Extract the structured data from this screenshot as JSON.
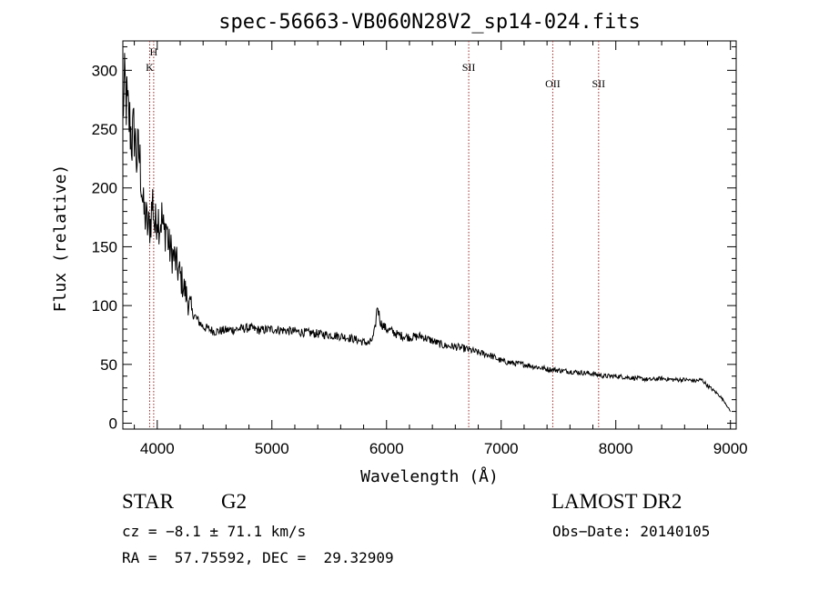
{
  "chart_data": {
    "type": "line",
    "title": "spec-56663-VB060N28V2_sp14-024.fits",
    "xlabel": "Wavelength (Å)",
    "ylabel": "Flux (relative)",
    "xlim": [
      3700,
      9050
    ],
    "ylim": [
      -5,
      325
    ],
    "x_ticks": [
      4000,
      5000,
      6000,
      7000,
      8000,
      9000
    ],
    "y_ticks": [
      0,
      50,
      100,
      150,
      200,
      250,
      300
    ],
    "grid": false,
    "series": [
      {
        "name": "flux",
        "x": [
          3700,
          3720,
          3740,
          3760,
          3780,
          3800,
          3820,
          3840,
          3860,
          3880,
          3900,
          3920,
          3940,
          3960,
          3980,
          4000,
          4020,
          4040,
          4060,
          4080,
          4100,
          4150,
          4200,
          4250,
          4300,
          4350,
          4400,
          4450,
          4500,
          4600,
          4700,
          4800,
          4900,
          5000,
          5100,
          5200,
          5300,
          5400,
          5500,
          5600,
          5700,
          5800,
          5850,
          5880,
          5900,
          5920,
          5950,
          6000,
          6050,
          6100,
          6200,
          6300,
          6400,
          6500,
          6600,
          6700,
          6800,
          6900,
          7000,
          7100,
          7200,
          7300,
          7400,
          7500,
          7600,
          7700,
          7800,
          7900,
          8000,
          8100,
          8200,
          8300,
          8400,
          8500,
          8600,
          8700,
          8750,
          8800,
          8850,
          8900,
          8950,
          9000
        ],
        "y": [
          270,
          285,
          265,
          255,
          240,
          250,
          225,
          230,
          210,
          180,
          175,
          165,
          170,
          190,
          165,
          180,
          170,
          175,
          160,
          170,
          150,
          140,
          125,
          110,
          95,
          88,
          82,
          80,
          78,
          79,
          80,
          81,
          79,
          80,
          79,
          78,
          77,
          76,
          75,
          74,
          72,
          69,
          68,
          72,
          80,
          100,
          85,
          80,
          78,
          75,
          73,
          74,
          70,
          66,
          65,
          63,
          60,
          58,
          53,
          51,
          50,
          48,
          46,
          45,
          44,
          43,
          42,
          40,
          40,
          39,
          38,
          37,
          38,
          37,
          37,
          36,
          37,
          32,
          28,
          24,
          18,
          10
        ]
      }
    ],
    "line_markers": [
      {
        "wavelength": 3934,
        "label": "K"
      },
      {
        "wavelength": 3969,
        "label": "H"
      },
      {
        "wavelength": 6717,
        "label": "SII"
      },
      {
        "wavelength": 7450,
        "label": "OII"
      },
      {
        "wavelength": 7850,
        "label": "SII"
      }
    ]
  },
  "info": {
    "class_label": "STAR",
    "subclass": "G2",
    "survey": "LAMOST DR2",
    "cz": "cz = −8.1 ± 71.1 km/s",
    "obs_date": "Obs−Date: 20140105",
    "coords": "RA =  57.75592, DEC =  29.32909"
  }
}
